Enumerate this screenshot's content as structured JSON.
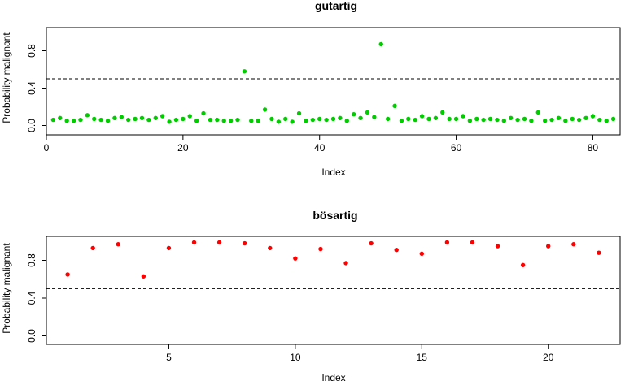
{
  "chart_data": [
    {
      "type": "scatter",
      "title": "gutartig",
      "xlabel": "Index",
      "ylabel": "Probability malignant",
      "color": "#00cc00",
      "xlim": [
        0,
        84
      ],
      "ylim": [
        0.0,
        1.0
      ],
      "xticks": [
        0,
        20,
        40,
        60,
        80
      ],
      "yticks": [
        0.0,
        0.4,
        0.8
      ],
      "ytick_labels": [
        "0.0",
        "0.4",
        "0.8"
      ],
      "threshold": 0.5,
      "grid": false,
      "legend": "none",
      "x": [
        1,
        2,
        3,
        4,
        5,
        6,
        7,
        8,
        9,
        10,
        11,
        12,
        13,
        14,
        15,
        16,
        17,
        18,
        19,
        20,
        21,
        22,
        23,
        24,
        25,
        26,
        27,
        28,
        29,
        30,
        31,
        32,
        33,
        34,
        35,
        36,
        37,
        38,
        39,
        40,
        41,
        42,
        43,
        44,
        45,
        46,
        47,
        48,
        49,
        50,
        51,
        52,
        53,
        54,
        55,
        56,
        57,
        58,
        59,
        60,
        61,
        62,
        63,
        64,
        65,
        66,
        67,
        68,
        69,
        70,
        71,
        72,
        73,
        74,
        75,
        76,
        77,
        78,
        79,
        80,
        81,
        82,
        83
      ],
      "y": [
        0.06,
        0.08,
        0.05,
        0.05,
        0.06,
        0.11,
        0.07,
        0.06,
        0.05,
        0.08,
        0.09,
        0.06,
        0.07,
        0.08,
        0.06,
        0.08,
        0.1,
        0.04,
        0.06,
        0.07,
        0.1,
        0.05,
        0.13,
        0.06,
        0.06,
        0.05,
        0.05,
        0.06,
        0.58,
        0.05,
        0.05,
        0.17,
        0.07,
        0.04,
        0.07,
        0.04,
        0.13,
        0.05,
        0.06,
        0.07,
        0.06,
        0.07,
        0.08,
        0.05,
        0.12,
        0.08,
        0.14,
        0.09,
        0.87,
        0.07,
        0.21,
        0.05,
        0.07,
        0.06,
        0.1,
        0.07,
        0.08,
        0.14,
        0.07,
        0.07,
        0.1,
        0.05,
        0.07,
        0.06,
        0.07,
        0.06,
        0.05,
        0.08,
        0.06,
        0.07,
        0.05,
        0.14,
        0.05,
        0.06,
        0.08,
        0.05,
        0.07,
        0.06,
        0.08,
        0.1,
        0.06,
        0.05,
        0.07
      ]
    },
    {
      "type": "scatter",
      "title": "bösartig",
      "xlabel": "Index",
      "ylabel": "Probability malignant",
      "color": "#ff0000",
      "xlim": [
        0.16,
        22.84
      ],
      "ylim": [
        0.0,
        1.0
      ],
      "xticks": [
        5,
        10,
        15,
        20
      ],
      "yticks": [
        0.0,
        0.4,
        0.8
      ],
      "ytick_labels": [
        "0.0",
        "0.4",
        "0.8"
      ],
      "threshold": 0.5,
      "grid": false,
      "legend": "none",
      "x": [
        1,
        2,
        3,
        4,
        5,
        6,
        7,
        8,
        9,
        10,
        11,
        12,
        13,
        14,
        15,
        16,
        17,
        18,
        19,
        20,
        21,
        22
      ],
      "y": [
        0.65,
        0.93,
        0.97,
        0.63,
        0.93,
        0.99,
        0.99,
        0.98,
        0.93,
        0.82,
        0.92,
        0.77,
        0.98,
        0.91,
        0.87,
        0.99,
        0.99,
        0.95,
        0.75,
        0.95,
        0.97,
        0.88
      ]
    }
  ]
}
